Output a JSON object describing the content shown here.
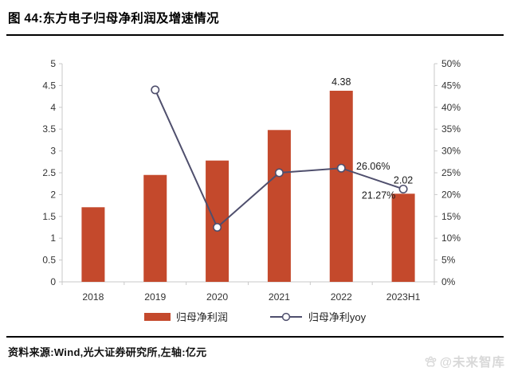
{
  "header": {
    "title": "图 44:东方电子归母净利润及增速情况"
  },
  "footer": {
    "source_note": "资料来源:Wind,光大证券研究所,左轴:亿元"
  },
  "watermark": {
    "text": "@未来智库"
  },
  "colors": {
    "bar": "#c4492c",
    "line": "#4f4f6d",
    "axis_line": "#c9c9c9",
    "tick_text": "#333333",
    "label_text": "#1a1a1a"
  },
  "chart_data": {
    "type": "bar+line",
    "title": "东方电子归母净利润及增速情况",
    "categories": [
      "2018",
      "2019",
      "2020",
      "2021",
      "2022",
      "2023H1"
    ],
    "series": [
      {
        "name": "归母净利润",
        "kind": "bar",
        "axis": "left",
        "unit": "亿元",
        "values": [
          1.71,
          2.45,
          2.78,
          3.48,
          4.38,
          2.02
        ],
        "point_labels": [
          null,
          null,
          null,
          null,
          "4.38",
          "2.02"
        ]
      },
      {
        "name": "归母净利yoy",
        "kind": "line",
        "axis": "right",
        "unit": "%",
        "values": [
          null,
          44.0,
          12.5,
          25.0,
          26.06,
          21.27
        ],
        "point_labels": [
          null,
          null,
          null,
          null,
          "26.06%",
          "21.27%"
        ],
        "label_offsets": [
          null,
          null,
          null,
          null,
          [
            40,
            2
          ],
          [
            -31,
            12
          ]
        ]
      }
    ],
    "left_axis": {
      "min": 0,
      "max": 5,
      "step": 0.5,
      "ticks": [
        "0",
        "0.5",
        "1",
        "1.5",
        "2",
        "2.5",
        "3",
        "3.5",
        "4",
        "4.5",
        "5"
      ]
    },
    "right_axis": {
      "min": 0,
      "max": 50,
      "step": 5,
      "ticks": [
        "0%",
        "5%",
        "10%",
        "15%",
        "20%",
        "25%",
        "30%",
        "35%",
        "40%",
        "45%",
        "50%"
      ]
    },
    "legend": [
      {
        "label": "归母净利润",
        "kind": "bar"
      },
      {
        "label": "归母净利yoy",
        "kind": "line"
      }
    ],
    "grid": false,
    "legend_position": "bottom"
  }
}
